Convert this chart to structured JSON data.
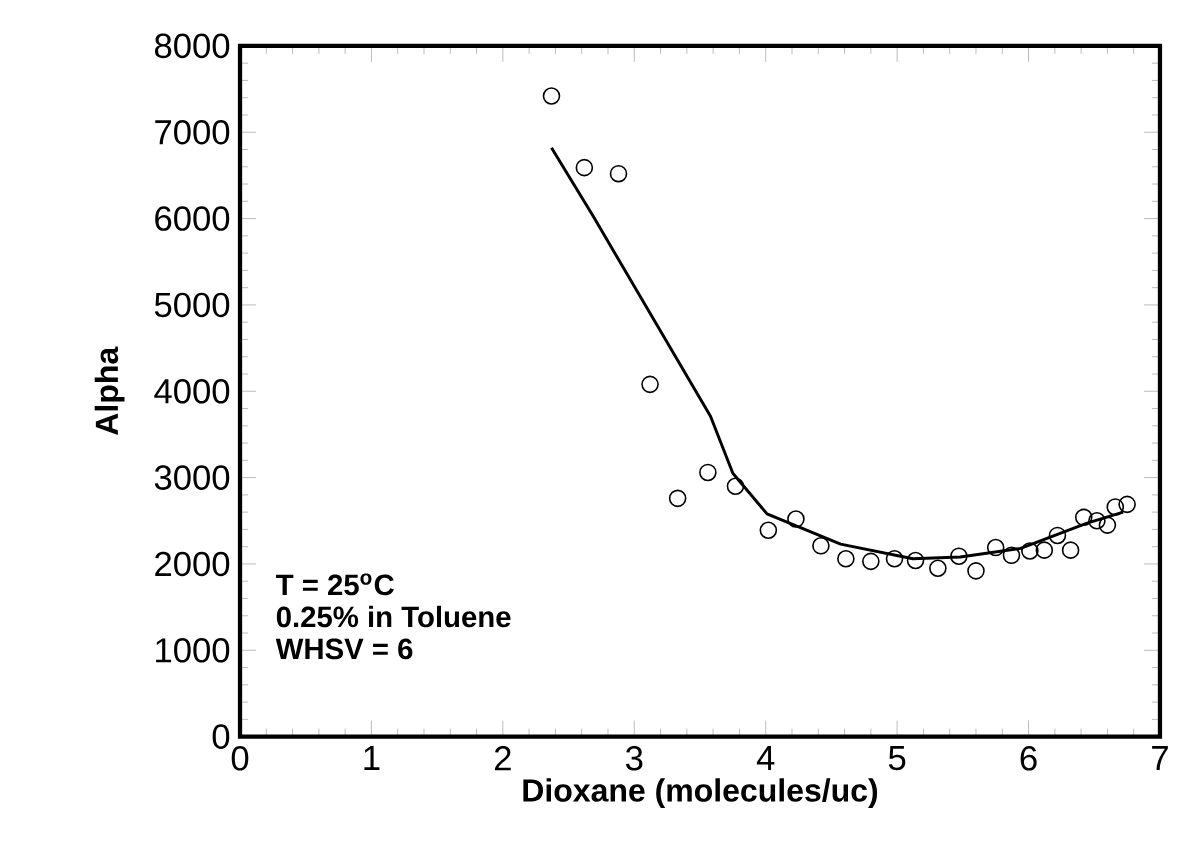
{
  "chart_data": {
    "type": "scatter",
    "xlabel": "Dioxane (molecules/uc)",
    "ylabel": "Alpha",
    "xlim": [
      0,
      7
    ],
    "xticks": [
      0,
      1,
      2,
      3,
      4,
      5,
      6,
      7
    ],
    "ylim": [
      0,
      8000
    ],
    "yticks": [
      0,
      1000,
      2000,
      3000,
      4000,
      5000,
      6000,
      7000,
      8000
    ],
    "grid": false,
    "annotations": [
      "T = 25$^{o}$C",
      "0.25% in Toluene",
      "WHSV = 6"
    ],
    "series": [
      {
        "type": "scatter",
        "marker": "circle",
        "color": "#000000",
        "x": [
          2.37,
          2.62,
          2.88,
          3.12,
          3.33,
          3.56,
          3.77,
          4.02,
          4.23,
          4.42,
          4.61,
          4.8,
          4.98,
          5.14,
          5.31,
          5.47,
          5.6,
          5.75,
          5.87,
          6.01,
          6.12,
          6.22,
          6.32,
          6.42,
          6.52,
          6.6,
          6.66,
          6.75
        ],
        "values": [
          7420,
          6590,
          6520,
          4080,
          2760,
          3060,
          2900,
          2390,
          2520,
          2210,
          2060,
          2030,
          2060,
          2040,
          1950,
          2090,
          1920,
          2190,
          2100,
          2150,
          2160,
          2330,
          2160,
          2540,
          2500,
          2450,
          2660,
          2690
        ]
      },
      {
        "type": "line",
        "marker": "none",
        "line_style": "solid",
        "color": "#000000",
        "x": [
          2.37,
          2.69,
          3.58,
          3.75,
          4.01,
          4.57,
          5.12,
          5.48,
          5.94,
          6.44,
          6.72
        ],
        "values": [
          6820,
          6020,
          3710,
          3050,
          2580,
          2230,
          2060,
          2080,
          2180,
          2470,
          2600
        ]
      }
    ]
  }
}
